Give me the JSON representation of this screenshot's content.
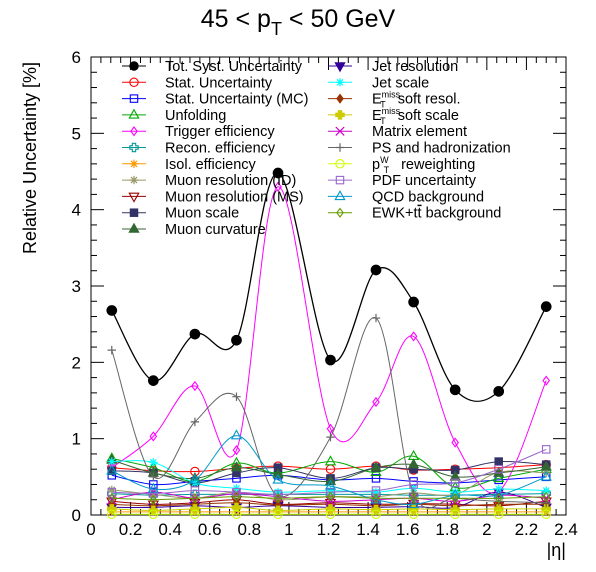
{
  "chart_data": {
    "type": "line",
    "title": {
      "prefix": "45 < p",
      "sub": "T",
      "suffix": " < 50 GeV"
    },
    "xlabel": "|η|",
    "ylabel": "Relative Uncertainty [%]",
    "xlim": [
      0,
      2.4
    ],
    "ylim": [
      0,
      6
    ],
    "x_ticks": [
      "0",
      "0.2",
      "0.4",
      "0.6",
      "0.8",
      "1",
      "1.2",
      "1.4",
      "1.6",
      "1.8",
      "2",
      "2.2",
      "2.4"
    ],
    "y_ticks": [
      "0",
      "1",
      "2",
      "3",
      "4",
      "5",
      "6"
    ],
    "grid": false,
    "legend_position": "top",
    "x": [
      0.105,
      0.315,
      0.525,
      0.735,
      0.945,
      1.21,
      1.44,
      1.63,
      1.84,
      2.06,
      2.3
    ],
    "series": [
      {
        "name": "Tot. Syst. Uncertainty",
        "color": "#000000",
        "marker": "filled-circle",
        "values": [
          2.68,
          1.76,
          2.37,
          2.29,
          4.48,
          2.03,
          3.21,
          2.79,
          1.64,
          1.62,
          2.73
        ]
      },
      {
        "name": "Stat. Uncertainty",
        "color": "#ff0000",
        "marker": "open-circle",
        "values": [
          0.62,
          0.58,
          0.57,
          0.61,
          0.64,
          0.6,
          0.64,
          0.59,
          0.6,
          0.62,
          0.66
        ]
      },
      {
        "name": "Stat. Uncertainty (MC)",
        "color": "#0000ff",
        "marker": "open-square",
        "values": [
          0.52,
          0.4,
          0.44,
          0.48,
          0.52,
          0.46,
          0.48,
          0.44,
          0.42,
          0.46,
          0.5
        ]
      },
      {
        "name": "Unfolding",
        "color": "#00aa00",
        "marker": "open-triangle",
        "values": [
          0.74,
          0.62,
          0.44,
          0.68,
          0.55,
          0.7,
          0.56,
          0.77,
          0.36,
          0.48,
          0.6
        ]
      },
      {
        "name": "Trigger efficiency",
        "color": "#ff00ff",
        "marker": "open-diamond",
        "values": [
          0.62,
          1.03,
          1.69,
          0.85,
          4.3,
          1.13,
          1.48,
          2.34,
          0.95,
          0.31,
          1.76
        ]
      },
      {
        "name": "Recon. efficiency",
        "color": "#009999",
        "marker": "open-cross",
        "values": [
          0.28,
          0.26,
          0.27,
          0.27,
          0.27,
          0.27,
          0.27,
          0.26,
          0.26,
          0.27,
          0.28
        ]
      },
      {
        "name": "Isol. efficiency",
        "color": "#ff9900",
        "marker": "star",
        "values": [
          0.04,
          0.04,
          0.04,
          0.04,
          0.04,
          0.04,
          0.04,
          0.04,
          0.04,
          0.04,
          0.04
        ]
      },
      {
        "name": "Muon resolution (ID)",
        "color": "#999966",
        "marker": "asterisk",
        "values": [
          0.33,
          0.27,
          0.22,
          0.3,
          0.2,
          0.24,
          0.24,
          0.29,
          0.27,
          0.56,
          0.55
        ]
      },
      {
        "name": "Muon resolution (MS)",
        "color": "#990000",
        "marker": "open-triangle-down",
        "values": [
          0.18,
          0.14,
          0.16,
          0.2,
          0.14,
          0.16,
          0.14,
          0.15,
          0.14,
          0.12,
          0.18
        ]
      },
      {
        "name": "Muon scale",
        "color": "#333366",
        "marker": "filled-square",
        "values": [
          0.58,
          0.55,
          0.42,
          0.55,
          0.62,
          0.48,
          0.62,
          0.6,
          0.59,
          0.7,
          0.66
        ]
      },
      {
        "name": "Muon curvature",
        "color": "#336633",
        "marker": "filled-triangle",
        "values": [
          0.72,
          0.55,
          0.48,
          0.62,
          0.53,
          0.44,
          0.62,
          0.66,
          0.5,
          0.55,
          0.63
        ]
      },
      {
        "name": "Jet resolution",
        "color": "#330099",
        "marker": "filled-triangle-down",
        "values": [
          0.1,
          0.1,
          0.12,
          0.1,
          0.12,
          0.1,
          0.1,
          0.11,
          0.1,
          0.3,
          0.1
        ]
      },
      {
        "name": "Jet scale",
        "color": "#00ffff",
        "marker": "star",
        "values": [
          0.7,
          0.69,
          0.42,
          0.35,
          0.3,
          0.32,
          0.3,
          0.35,
          0.3,
          0.34,
          0.32
        ]
      },
      {
        "name": "E_T^miss soft resol.",
        "color": "#993300",
        "marker": "filled-diamond",
        "values": [
          0.14,
          0.12,
          0.14,
          0.16,
          0.13,
          0.14,
          0.12,
          0.14,
          0.12,
          0.14,
          0.14
        ]
      },
      {
        "name": "E_T^miss soft scale",
        "color": "#cccc00",
        "marker": "filled-cross",
        "values": [
          0.08,
          0.06,
          0.08,
          0.1,
          0.06,
          0.08,
          0.07,
          0.08,
          0.07,
          0.08,
          0.08
        ]
      },
      {
        "name": "Matrix element",
        "color": "#cc00cc",
        "marker": "x",
        "values": [
          0.2,
          0.3,
          0.22,
          0.28,
          0.24,
          0.18,
          0.2,
          0.22,
          0.18,
          0.26,
          0.22
        ]
      },
      {
        "name": "PS and hadronization",
        "color": "#666666",
        "marker": "plus",
        "values": [
          2.16,
          0.5,
          1.22,
          1.55,
          0.25,
          1.02,
          2.58,
          0.28,
          0.22,
          0.18,
          0.16
        ]
      },
      {
        "name": "p_T^W reweighting",
        "color": "#ccff00",
        "marker": "open-circle",
        "values": [
          0.01,
          0.01,
          0.01,
          0.01,
          0.01,
          0.01,
          0.01,
          0.01,
          0.01,
          0.01,
          0.01
        ]
      },
      {
        "name": "PDF uncertainty",
        "color": "#9966cc",
        "marker": "open-square",
        "values": [
          0.3,
          0.28,
          0.32,
          0.3,
          0.27,
          0.3,
          0.32,
          0.4,
          0.42,
          0.6,
          0.86
        ]
      },
      {
        "name": "QCD background",
        "color": "#0099cc",
        "marker": "open-triangle",
        "values": [
          0.58,
          0.34,
          0.46,
          1.04,
          0.46,
          0.38,
          0.2,
          0.14,
          0.26,
          0.26,
          0.5
        ]
      },
      {
        "name": "EWK+tt background",
        "color": "#669900",
        "marker": "open-diamond",
        "values": [
          0.22,
          0.2,
          0.22,
          0.24,
          0.22,
          0.24,
          0.22,
          0.22,
          0.22,
          0.22,
          0.24
        ]
      }
    ]
  }
}
